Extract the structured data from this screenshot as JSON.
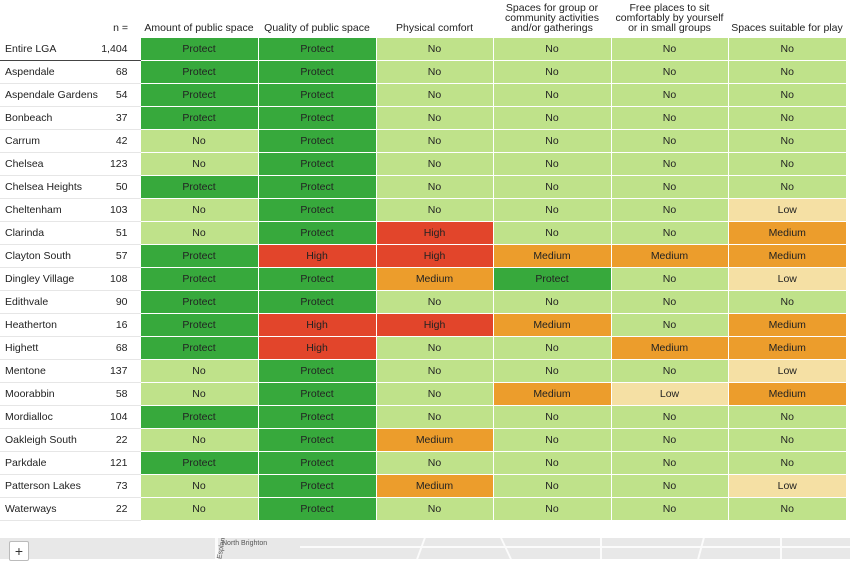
{
  "chart_data": {
    "type": "table",
    "n_header": "n =",
    "columns": [
      "Amount of public space",
      "Quality of public space",
      "Physical comfort",
      "Spaces for group or community activities and/or gatherings",
      "Free places to sit comfortably by yourself or in small groups",
      "Spaces suitable for play"
    ],
    "colors": {
      "Protect": "#37a93c",
      "No": "#bfe28a",
      "High": "#e2452b",
      "Medium": "#ec9d2c",
      "Low": "#f5e0a4"
    },
    "rows": [
      {
        "name": "Entire LGA",
        "n": "1,404",
        "values": [
          "Protect",
          "Protect",
          "No",
          "No",
          "No",
          "No"
        ]
      },
      {
        "name": "Aspendale",
        "n": "68",
        "values": [
          "Protect",
          "Protect",
          "No",
          "No",
          "No",
          "No"
        ]
      },
      {
        "name": "Aspendale Gardens",
        "n": "54",
        "values": [
          "Protect",
          "Protect",
          "No",
          "No",
          "No",
          "No"
        ]
      },
      {
        "name": "Bonbeach",
        "n": "37",
        "values": [
          "Protect",
          "Protect",
          "No",
          "No",
          "No",
          "No"
        ]
      },
      {
        "name": "Carrum",
        "n": "42",
        "values": [
          "No",
          "Protect",
          "No",
          "No",
          "No",
          "No"
        ]
      },
      {
        "name": "Chelsea",
        "n": "123",
        "values": [
          "No",
          "Protect",
          "No",
          "No",
          "No",
          "No"
        ]
      },
      {
        "name": "Chelsea Heights",
        "n": "50",
        "values": [
          "Protect",
          "Protect",
          "No",
          "No",
          "No",
          "No"
        ]
      },
      {
        "name": "Cheltenham",
        "n": "103",
        "values": [
          "No",
          "Protect",
          "No",
          "No",
          "No",
          "Low"
        ]
      },
      {
        "name": "Clarinda",
        "n": "51",
        "values": [
          "No",
          "Protect",
          "High",
          "No",
          "No",
          "Medium"
        ]
      },
      {
        "name": "Clayton South",
        "n": "57",
        "values": [
          "Protect",
          "High",
          "High",
          "Medium",
          "Medium",
          "Medium"
        ]
      },
      {
        "name": "Dingley Village",
        "n": "108",
        "values": [
          "Protect",
          "Protect",
          "Medium",
          "Protect",
          "No",
          "Low"
        ]
      },
      {
        "name": "Edithvale",
        "n": "90",
        "values": [
          "Protect",
          "Protect",
          "No",
          "No",
          "No",
          "No"
        ]
      },
      {
        "name": "Heatherton",
        "n": "16",
        "values": [
          "Protect",
          "High",
          "High",
          "Medium",
          "No",
          "Medium"
        ]
      },
      {
        "name": "Highett",
        "n": "68",
        "values": [
          "Protect",
          "High",
          "No",
          "No",
          "Medium",
          "Medium"
        ]
      },
      {
        "name": "Mentone",
        "n": "137",
        "values": [
          "No",
          "Protect",
          "No",
          "No",
          "No",
          "Low"
        ]
      },
      {
        "name": "Moorabbin",
        "n": "58",
        "values": [
          "No",
          "Protect",
          "No",
          "Medium",
          "Low",
          "Medium"
        ]
      },
      {
        "name": "Mordialloc",
        "n": "104",
        "values": [
          "Protect",
          "Protect",
          "No",
          "No",
          "No",
          "No"
        ]
      },
      {
        "name": "Oakleigh South",
        "n": "22",
        "values": [
          "No",
          "Protect",
          "Medium",
          "No",
          "No",
          "No"
        ]
      },
      {
        "name": "Parkdale",
        "n": "121",
        "values": [
          "Protect",
          "Protect",
          "No",
          "No",
          "No",
          "No"
        ]
      },
      {
        "name": "Patterson Lakes",
        "n": "73",
        "values": [
          "No",
          "Protect",
          "Medium",
          "No",
          "No",
          "Low"
        ]
      },
      {
        "name": "Waterways",
        "n": "22",
        "values": [
          "No",
          "Protect",
          "No",
          "No",
          "No",
          "No"
        ]
      }
    ]
  },
  "map": {
    "zoom_in_label": "+",
    "label_a": "North Brighton",
    "label_b": "Esplan"
  }
}
